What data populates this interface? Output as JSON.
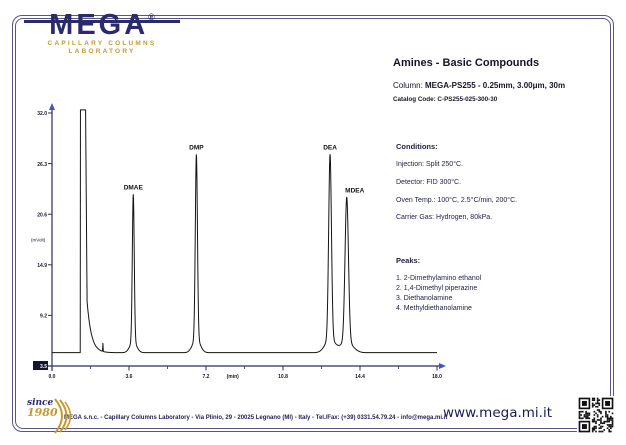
{
  "page": {
    "logo": {
      "brand": "MEGA",
      "registered": "®",
      "tagline1": "CAPILLARY COLUMNS",
      "tagline2": "LABORATORY"
    },
    "title": "Amines - Basic Compounds",
    "column_label": "Column: ",
    "column_value": "MEGA-PS255 - 0.25mm, 3.00μm, 30m",
    "catalog_code": "Catalog Code: C-PS255-025-300-30",
    "conditions": {
      "heading": "Conditions:",
      "lines": [
        "Injection: Split 250°C.",
        "Detector: FID 300°C.",
        "Oven Temp.: 100°C, 2.5°C/min, 200°C.",
        "Carrier Gas: Hydrogen, 80kPa."
      ]
    },
    "peaks_list": {
      "heading": "Peaks:",
      "items": [
        "1. 2-Dimethylamino ethanol",
        "2. 1,4-Dimethyl piperazine",
        "3. Diethanolamine",
        "4. Methyldiethanolamine"
      ]
    },
    "footer": {
      "since_word": "since",
      "since_year": "1980",
      "address": "MEGA s.n.c. - Capillary Columns Laboratory - Via Plinio, 29 - 20025 Legnano (MI) - Italy - Tel./Fax: (+39) 0331.54.79.24 - info@mega.mi.it",
      "website": "www.mega.mi.it"
    },
    "colors": {
      "navy": "#2b2b6b",
      "gold": "#c49a30",
      "frame": "#56568a",
      "axis": "#2c2c5e",
      "arrow_blue": "#3a57c4",
      "trace": "#141414"
    }
  },
  "chart_data": {
    "type": "line",
    "title": "",
    "xlabel": "(min)",
    "ylabel": "(mVolt)",
    "xlim": [
      0.0,
      18.0
    ],
    "ylim": [
      3.5,
      32.0
    ],
    "x_major_ticks": [
      0.0,
      3.6,
      7.2,
      10.8,
      14.4,
      18.0
    ],
    "x_minor_ticks": [
      1.8,
      5.4,
      9.0,
      12.6,
      16.2
    ],
    "y_ticks": [
      3.5,
      9.2,
      14.9,
      20.6,
      26.3,
      32.0
    ],
    "grid": false,
    "baseline_mv": 5.0,
    "solvent_peak": {
      "rise_min": 1.33,
      "top_end_min": 1.57,
      "drop_end_min": 1.64,
      "drop_level_mv": 10.8,
      "tail_tau_min": 0.2,
      "clip_mv": 32.35
    },
    "artifact_blip": {
      "time_min": 2.38,
      "height_mv": 0.9,
      "sigma_min": 0.012
    },
    "peaks": [
      {
        "label": "DMAE",
        "time_min": 3.8,
        "height_mv": 22.8,
        "sigma_min": 0.045,
        "label_dx": 0
      },
      {
        "label": "DMP",
        "time_min": 6.75,
        "height_mv": 27.3,
        "sigma_min": 0.05,
        "label_dx": 0
      },
      {
        "label": "DEA",
        "time_min": 13.0,
        "height_mv": 27.3,
        "sigma_min": 0.065,
        "label_dx": 0
      },
      {
        "label": "MDEA",
        "time_min": 13.78,
        "height_mv": 22.5,
        "sigma_min": 0.08,
        "label_dx": 8
      }
    ]
  }
}
